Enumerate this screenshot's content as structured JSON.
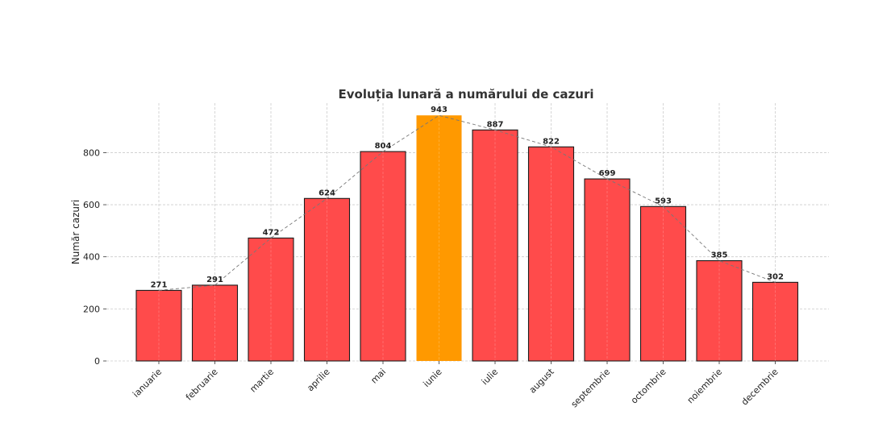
{
  "chart_data": {
    "type": "bar",
    "title": "Evoluția lunară a numărului de cazuri",
    "xlabel": "",
    "ylabel": "Număr cazuri",
    "categories": [
      "ianuarie",
      "februarie",
      "martie",
      "aprilie",
      "mai",
      "iunie",
      "iulie",
      "august",
      "septembrie",
      "octombrie",
      "noiembrie",
      "decembrie"
    ],
    "values": [
      271,
      291,
      472,
      624,
      804,
      943,
      887,
      822,
      699,
      593,
      385,
      302
    ],
    "data_labels": [
      "271",
      "291",
      "472",
      "624",
      "804",
      "943",
      "887",
      "822",
      "699",
      "593",
      "385",
      "302"
    ],
    "yticks": [
      0,
      200,
      400,
      600,
      800
    ],
    "ytick_labels": [
      "0",
      "200",
      "400",
      "600",
      "800"
    ],
    "ylim": [
      0,
      990
    ],
    "highlight_index": 5,
    "grid": true,
    "trend_line": true,
    "colors": {
      "bar": "#ff4b4b",
      "highlight": "#ff9900",
      "bar_edge": "#1a1a1a",
      "trend": "#777777",
      "grid": "#cccccc"
    }
  }
}
